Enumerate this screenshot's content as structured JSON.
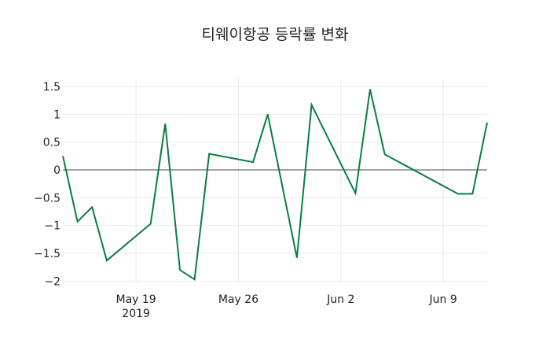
{
  "chart_data": {
    "type": "line",
    "title": "티웨이항공 등락률 변화",
    "xlabel": "",
    "ylabel": "",
    "ylim": [
      -2.1,
      1.65
    ],
    "grid": true,
    "legend": "none",
    "x_ticks": [
      {
        "label": "May 19",
        "sublabel": "2019",
        "date": "2019-05-19"
      },
      {
        "label": "May 26",
        "sublabel": "",
        "date": "2019-05-26"
      },
      {
        "label": "Jun 2",
        "sublabel": "",
        "date": "2019-06-02"
      },
      {
        "label": "Jun 9",
        "sublabel": "",
        "date": "2019-06-09"
      }
    ],
    "y_ticks": [
      {
        "label": "1.5",
        "value": 1.5
      },
      {
        "label": "1",
        "value": 1
      },
      {
        "label": "0.5",
        "value": 0.5
      },
      {
        "label": "0",
        "value": 0
      },
      {
        "label": "−0.5",
        "value": -0.5
      },
      {
        "label": "−1",
        "value": -1
      },
      {
        "label": "−1.5",
        "value": -1.5
      },
      {
        "label": "−2",
        "value": -2
      }
    ],
    "series": [
      {
        "name": "등락률",
        "color": "#0a7d45",
        "x": [
          "2019-05-14",
          "2019-05-15",
          "2019-05-16",
          "2019-05-17",
          "2019-05-20",
          "2019-05-21",
          "2019-05-22",
          "2019-05-23",
          "2019-05-24",
          "2019-05-27",
          "2019-05-28",
          "2019-05-30",
          "2019-05-31",
          "2019-06-03",
          "2019-06-04",
          "2019-06-05",
          "2019-06-10",
          "2019-06-11",
          "2019-06-12"
        ],
        "values": [
          0.25,
          -0.93,
          -0.67,
          -1.63,
          -0.97,
          0.83,
          -1.8,
          -1.97,
          0.29,
          0.14,
          1.0,
          -1.58,
          1.17,
          -0.42,
          1.45,
          0.28,
          -0.43,
          -0.43,
          0.85
        ]
      }
    ]
  }
}
